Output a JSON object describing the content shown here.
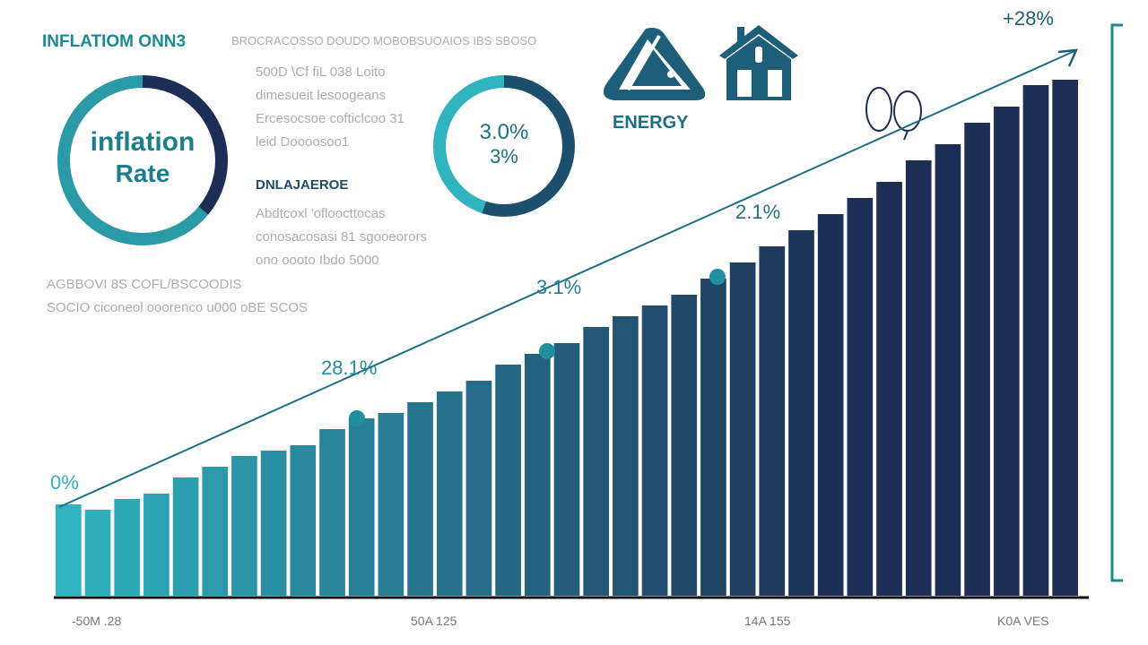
{
  "header": {
    "title": "INFLATIOM ONN3",
    "subtitle": "BROCRACOSSO DOUDO MOBOBSUOAIOS IBS SBOSO"
  },
  "ring_main": {
    "line1": "inflation",
    "line2": "Rate"
  },
  "text_block_1": [
    "500D \\Cf fiL 038 Loito",
    "dimesueit lesoogeans",
    "Ercesocsoe cofticlcoo 31",
    "leid Doooosoo1"
  ],
  "section_heading": "DNLAJAEROE",
  "text_block_2": [
    "Abdtcoxl 'ofloocttocas",
    "conosacosasi 81 sgooeorors",
    "ono oooto Ibdo 5000"
  ],
  "text_block_3": [
    "AGBBOVI 8S COFL/BSCOODIS",
    "SOCIO ciconeol ooorenco u000 oBE SCOS"
  ],
  "ring_small": {
    "line1": "3.0%",
    "line2": "3%",
    "fill_fraction": 0.55
  },
  "icons": {
    "energy_icon": "fuel-triangle-icon",
    "house_icon": "house-icon",
    "eggs_icon": "eggs-icon",
    "energy_label": "ENERGY"
  },
  "colors": {
    "teal": "#2fb3bf",
    "navy": "#1c2e55",
    "accent": "#1d6f85"
  },
  "chart_data": {
    "type": "bar",
    "title": "",
    "xlabel": "",
    "ylabel": "",
    "ylim": [
      0,
      100
    ],
    "grid": false,
    "values": [
      17,
      16,
      18,
      19,
      22,
      24,
      26,
      27,
      28,
      31,
      33,
      34,
      36,
      38,
      40,
      43,
      45,
      47,
      50,
      52,
      54,
      56,
      59,
      62,
      65,
      68,
      71,
      74,
      77,
      81,
      84,
      88,
      91,
      95,
      96
    ],
    "x_tick_labels": [
      "-50M .28",
      "50A 125",
      "14A 155",
      "K0A VES"
    ],
    "trend_line": {
      "annotations": [
        "0%",
        "28.1%",
        "3.1%",
        "2.1%",
        "+28%"
      ]
    }
  }
}
